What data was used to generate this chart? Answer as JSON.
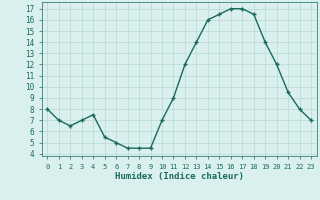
{
  "x": [
    0,
    1,
    2,
    3,
    4,
    5,
    6,
    7,
    8,
    9,
    10,
    11,
    12,
    13,
    14,
    15,
    16,
    17,
    18,
    19,
    20,
    21,
    22,
    23
  ],
  "y": [
    8,
    7,
    6.5,
    7,
    7.5,
    5.5,
    5.0,
    4.5,
    4.5,
    4.5,
    7,
    9,
    12,
    14,
    16,
    16.5,
    17,
    17,
    16.5,
    14,
    12,
    9.5,
    8,
    7
  ],
  "line_color": "#1a6b5a",
  "marker_color": "#1a6b5a",
  "bg_color": "#d9f0ef",
  "grid_color": "#b8d8d5",
  "xlabel": "Humidex (Indice chaleur)",
  "xlim": [
    -0.5,
    23.5
  ],
  "ylim": [
    3.8,
    17.6
  ],
  "yticks": [
    4,
    5,
    6,
    7,
    8,
    9,
    10,
    11,
    12,
    13,
    14,
    15,
    16,
    17
  ],
  "font_color": "#1a6b5a"
}
